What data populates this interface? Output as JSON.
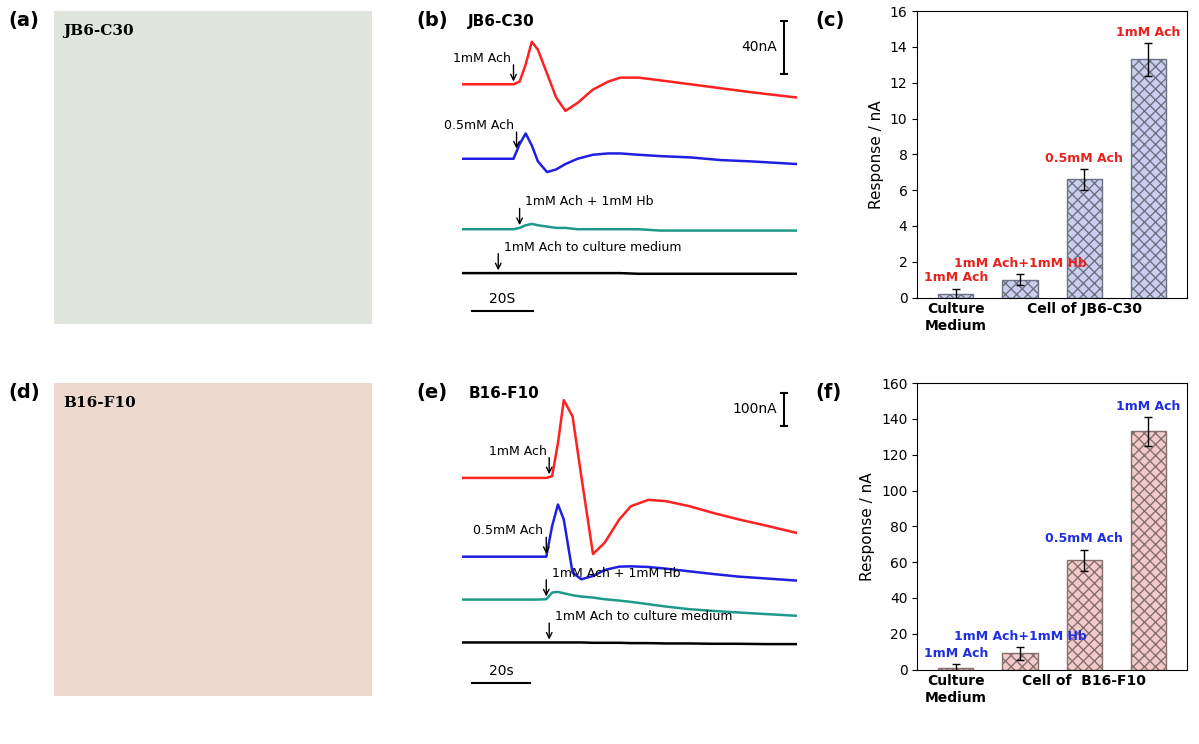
{
  "chart_data": [
    {
      "type": "image",
      "panel": "(a)",
      "title": "JB6-C30",
      "color": "#dfe4dc"
    },
    {
      "type": "line",
      "panel": "(b)",
      "title": "JB6-C30",
      "tick_labels": false,
      "x": [
        0,
        5,
        10,
        15,
        17,
        19,
        21,
        23,
        25,
        28,
        31,
        34,
        38,
        43,
        48,
        52,
        58,
        65,
        75,
        85,
        95,
        110
      ],
      "xlim": [
        0,
        110
      ],
      "ylim": [
        -30,
        205
      ],
      "series": [
        {
          "name": "1mM Ach",
          "color": "#ff2020",
          "arrow_x": 17,
          "values": [
            150,
            150,
            150,
            150,
            150,
            152,
            165,
            182,
            176,
            158,
            140,
            130,
            136,
            146,
            152,
            155,
            155,
            153,
            150,
            147,
            144,
            140
          ]
        },
        {
          "name": "0.5mM Ach",
          "color": "#1f1fe0",
          "arrow_x": 18,
          "values": [
            94,
            94,
            94,
            94,
            94,
            105,
            113,
            104,
            92,
            84,
            86,
            90,
            94,
            97,
            98,
            98,
            97,
            96,
            95,
            93,
            92,
            90
          ]
        },
        {
          "name": "1mM Ach + 1mM Hb",
          "color": "#1f9a8a",
          "arrow_x": 19,
          "values": [
            41,
            41,
            41,
            41,
            41,
            42,
            44,
            45,
            44,
            43,
            42,
            42,
            41,
            41,
            41,
            41,
            41,
            40,
            40,
            40,
            40,
            40
          ]
        },
        {
          "name": "1mM Ach to culture medium",
          "color": "#000000",
          "arrow_x": 12,
          "values": [
            8,
            8,
            8,
            8,
            8,
            8,
            8,
            8,
            8,
            8,
            8,
            8,
            8,
            8,
            8,
            8,
            7.5,
            7.5,
            7.5,
            7.5,
            7.5,
            7.5
          ]
        }
      ],
      "scale_bars": [
        {
          "axis": "y",
          "size": 40,
          "label": "40nA"
        },
        {
          "axis": "x",
          "size": 20,
          "label": "20S"
        }
      ]
    },
    {
      "type": "bar",
      "panel": "(c)",
      "color": "#c9cfee",
      "categories": [
        "Culture\nMedium",
        null,
        "Cell of JB6-C30",
        null
      ],
      "bar_texts": [
        "1mM Ach",
        "1mM Ach+1mM Hb",
        "0.5mM Ach",
        "1mM Ach"
      ],
      "values": [
        0.2,
        1.0,
        6.6,
        13.3
      ],
      "errors": [
        0.3,
        0.3,
        0.6,
        0.9
      ],
      "y_label": "Response / nA",
      "ylim": [
        0,
        16
      ],
      "yticks": [
        0,
        2,
        4,
        6,
        8,
        10,
        12,
        14,
        16
      ]
    },
    {
      "type": "image",
      "panel": "(d)",
      "title": "B16-F10",
      "color": "#eed9cf"
    },
    {
      "type": "line",
      "panel": "(e)",
      "title": "B16-F10",
      "tick_labels": false,
      "x": [
        0,
        10,
        20,
        26,
        29,
        31,
        33,
        35,
        38,
        41,
        45,
        49,
        54,
        58,
        64,
        70,
        78,
        86,
        95,
        105,
        115
      ],
      "xlim": [
        0,
        115
      ],
      "ylim": [
        -60,
        880
      ],
      "series": [
        {
          "name": "1mM Ach",
          "color": "#ff2020",
          "arrow_x": 30,
          "values": [
            595,
            595,
            595,
            595,
            595,
            600,
            700,
            829,
            780,
            600,
            366,
            400,
            470,
            510,
            529,
            525,
            510,
            490,
            470,
            450,
            429
          ]
        },
        {
          "name": "0.5mM Ach",
          "color": "#1f1fe0",
          "arrow_x": 29,
          "values": [
            358,
            358,
            358,
            358,
            358,
            450,
            515,
            470,
            310,
            290,
            300,
            318,
            328,
            329,
            327,
            322,
            314,
            306,
            298,
            292,
            286
          ]
        },
        {
          "name": "1mM Ach + 1mM Hb",
          "color": "#1f9a8a",
          "arrow_x": 29,
          "values": [
            229,
            229,
            229,
            229,
            230,
            250,
            252,
            248,
            242,
            238,
            235,
            230,
            226,
            222,
            215,
            208,
            200,
            195,
            190,
            185,
            180
          ]
        },
        {
          "name": "1mM Ach to culture medium",
          "color": "#000000",
          "arrow_x": 30,
          "values": [
            100,
            100,
            100,
            100,
            100,
            100,
            100,
            100,
            100,
            100,
            99,
            99,
            99,
            98,
            98,
            97,
            97,
            96,
            96,
            95,
            95
          ]
        }
      ],
      "scale_bars": [
        {
          "axis": "y",
          "size": 100,
          "label": "100nA"
        },
        {
          "axis": "x",
          "size": 20,
          "label": "20s"
        }
      ]
    },
    {
      "type": "bar",
      "panel": "(f)",
      "color": "#f2caca",
      "categories": [
        "Culture\nMedium",
        null,
        "Cell of  B16-F10",
        null
      ],
      "bar_texts": [
        "1mM Ach",
        "1mM Ach+1mM Hb",
        "0.5mM Ach",
        "1mM Ach"
      ],
      "values": [
        1,
        9,
        61,
        133
      ],
      "errors": [
        2,
        3.5,
        6,
        8
      ],
      "y_label": "Response / nA",
      "ylim": [
        0,
        160
      ],
      "yticks": [
        0,
        20,
        40,
        60,
        80,
        100,
        120,
        140,
        160
      ]
    }
  ]
}
